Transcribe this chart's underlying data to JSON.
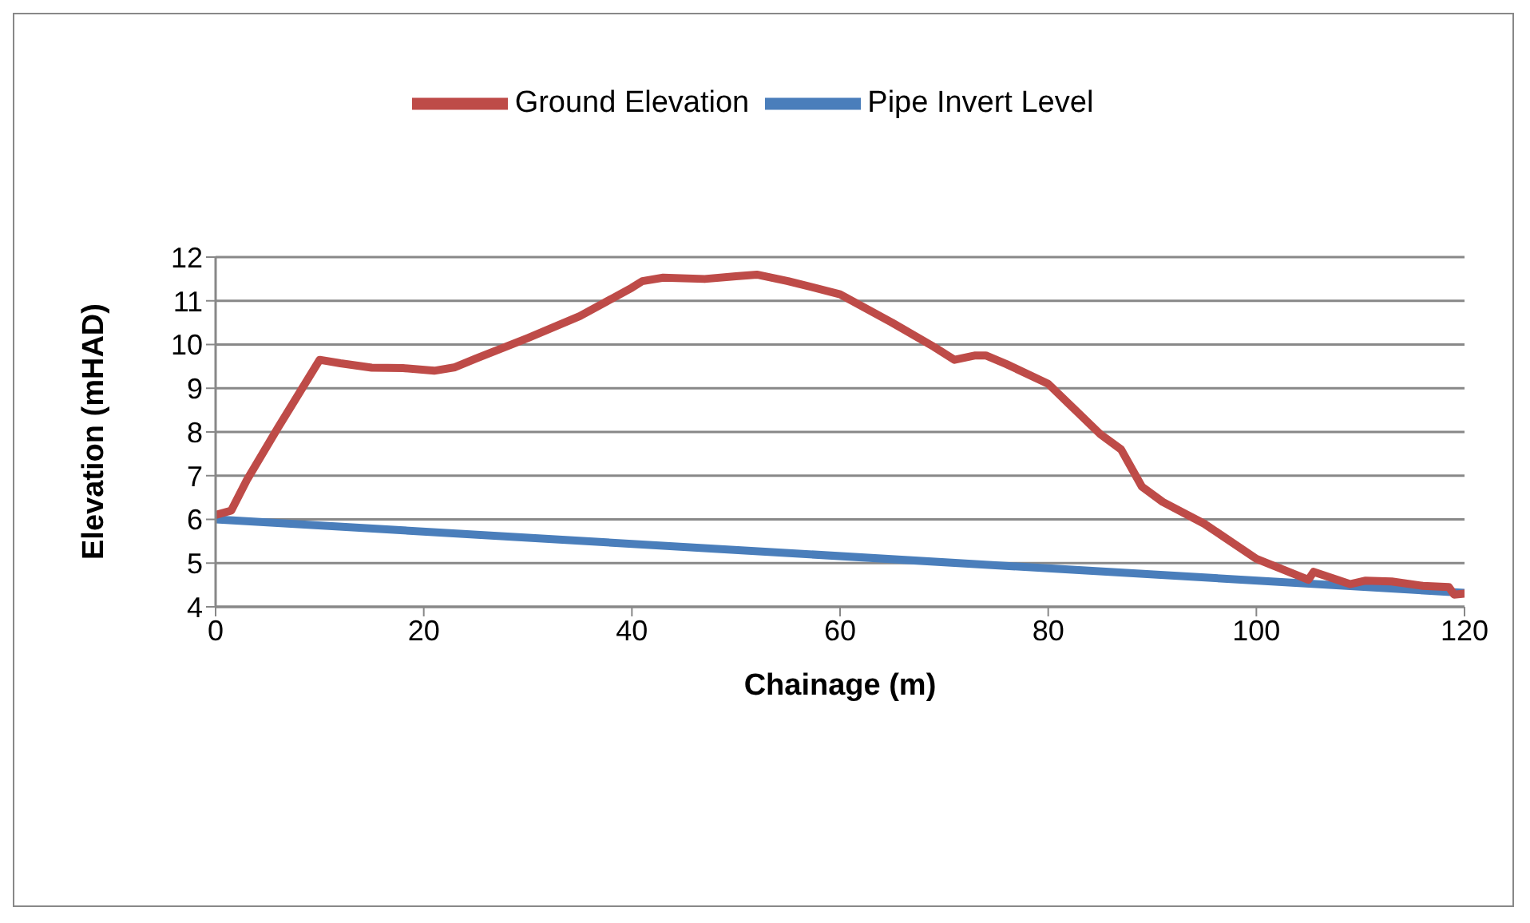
{
  "chart_data": {
    "type": "line",
    "xlabel": "Chainage (m)",
    "ylabel": "Elevation (mHAD)",
    "xlim": [
      0,
      120
    ],
    "xticks": [
      0,
      20,
      40,
      60,
      80,
      100,
      120
    ],
    "ylim": [
      4,
      12
    ],
    "yticks": [
      4,
      5,
      6,
      7,
      8,
      9,
      10,
      11,
      12
    ],
    "grid": "y",
    "legend": "top",
    "marker": "none",
    "line_style": "solid",
    "series": [
      {
        "name": "Pipe Invert Level",
        "color": "#4a7ebb",
        "x": [
          0,
          120
        ],
        "values": [
          6,
          4.32
        ]
      },
      {
        "name": "Ground Elevation",
        "color": "#be4b48",
        "x": [
          0,
          1.5,
          3,
          6,
          10,
          12,
          15,
          18,
          21,
          23,
          25,
          30,
          32,
          35,
          40,
          41,
          43,
          47,
          50,
          52,
          55,
          60,
          65,
          69,
          71,
          73,
          74,
          76,
          80,
          85,
          87,
          89,
          91,
          95,
          100,
          105,
          105.5,
          109,
          110.5,
          113,
          116,
          118.5,
          119,
          120
        ],
        "values": [
          6.1,
          6.2,
          6.9,
          8.1,
          9.65,
          9.57,
          9.47,
          9.46,
          9.4,
          9.48,
          9.68,
          10.15,
          10.35,
          10.65,
          11.3,
          11.45,
          11.53,
          11.5,
          11.56,
          11.6,
          11.45,
          11.15,
          10.5,
          9.95,
          9.65,
          9.75,
          9.75,
          9.55,
          9.1,
          7.95,
          7.6,
          6.75,
          6.4,
          5.9,
          5.1,
          4.62,
          4.8,
          4.52,
          4.6,
          4.58,
          4.48,
          4.45,
          4.28,
          4.3
        ]
      }
    ]
  }
}
